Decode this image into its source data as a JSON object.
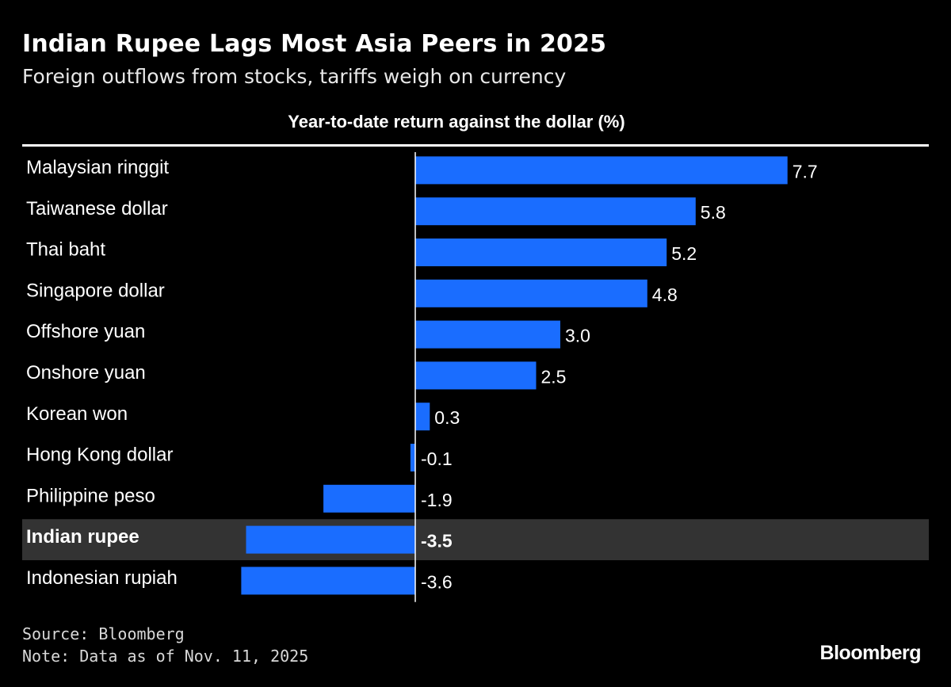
{
  "title": "Indian Rupee Lags Most Asia Peers in 2025",
  "subtitle": "Foreign outflows from stocks, tariffs weigh on currency",
  "footer": {
    "source": "Source: Bloomberg",
    "note": "Note: Data as of Nov. 11, 2025",
    "brand": "Bloomberg"
  },
  "colors": {
    "background": "#000000",
    "bar": "#1a6dff",
    "highlight_row": "#333333",
    "text": "#ffffff"
  },
  "chart_data": {
    "type": "bar",
    "orientation": "horizontal",
    "title": "Year-to-date return against the dollar (%)",
    "xlabel": "Year-to-date return against the dollar (%)",
    "ylabel": "",
    "categories": [
      "Malaysian ringgit",
      "Taiwanese dollar",
      "Thai baht",
      "Singapore dollar",
      "Offshore yuan",
      "Onshore yuan",
      "Korean won",
      "Hong Kong dollar",
      "Philippine peso",
      "Indian rupee",
      "Indonesian rupiah"
    ],
    "values": [
      7.7,
      5.8,
      5.2,
      4.8,
      3.0,
      2.5,
      0.3,
      -0.1,
      -1.9,
      -3.5,
      -3.6
    ],
    "value_labels": [
      "7.7",
      "5.8",
      "5.2",
      "4.8",
      "3.0",
      "2.5",
      "0.3",
      "-0.1",
      "-1.9",
      "-3.5",
      "-3.6"
    ],
    "highlight": "Indian rupee",
    "xlim": [
      -3.6,
      7.7
    ],
    "grid": false,
    "legend": "none"
  }
}
